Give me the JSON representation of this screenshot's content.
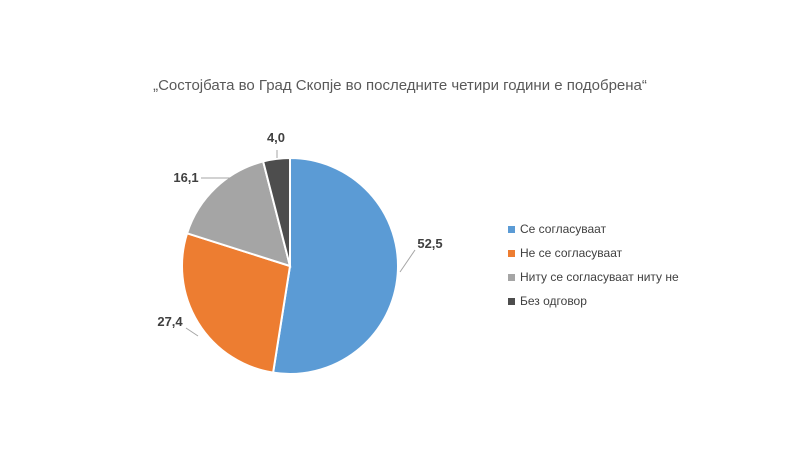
{
  "chart_data": {
    "type": "pie",
    "title": "„Состојбата во Град Скопје во последните четири години е подобрена“",
    "categories": [
      "Се согласуваат",
      "Не се согласуваат",
      "Ниту се согласуваат ниту не",
      "Без одговор"
    ],
    "values": [
      52.5,
      27.4,
      16.1,
      4.0
    ],
    "value_labels": [
      "52,5",
      "27,4",
      "16,1",
      "4,0"
    ],
    "colors": [
      "#5B9BD5",
      "#ED7D31",
      "#A5A5A5",
      "#4D4D4D"
    ],
    "legend_position": "right",
    "start": "12 o'clock, clockwise"
  }
}
